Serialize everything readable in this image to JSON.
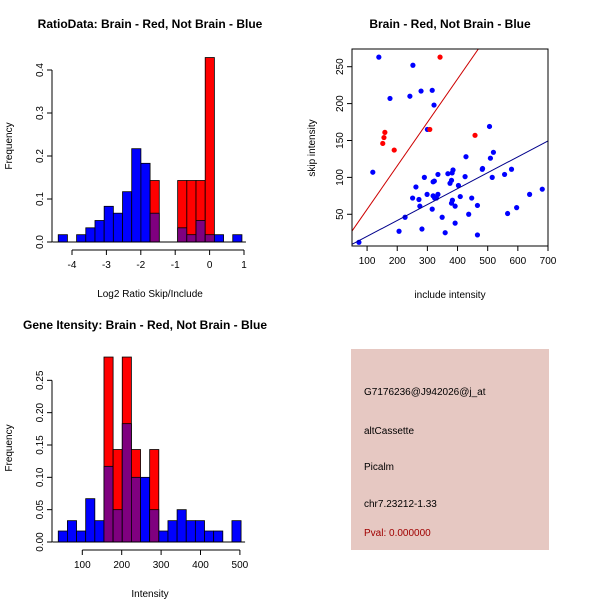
{
  "chart_data": [
    {
      "type": "bar",
      "subtype": "overlaid-histogram",
      "title": "RatioData: Brain - Red, Not Brain - Blue",
      "xlabel": "Log2 Ratio Skip/Include",
      "ylabel": "Frequency",
      "xlim": [
        -4.5,
        1.0
      ],
      "ylim": [
        0,
        0.43
      ],
      "xticks": [
        -4,
        -3,
        -2,
        -1,
        0,
        1
      ],
      "xtick_labels": [
        "-4",
        "-3",
        "-2",
        "-1",
        "0",
        "1"
      ],
      "yticks": [
        0,
        0.1,
        0.2,
        0.3,
        0.4
      ],
      "ytick_labels": [
        "0.0",
        "0.1",
        "0.2",
        "0.3",
        "0.4"
      ],
      "bin_start": -4.4,
      "bin_width": 0.267,
      "series": [
        {
          "name": "Not Brain",
          "color": "#0000ff",
          "values": [
            0.017,
            0,
            0.017,
            0.033,
            0.05,
            0.083,
            0.067,
            0.117,
            0.217,
            0.183,
            0.067,
            0,
            0,
            0.033,
            0.017,
            0.05,
            0.017,
            0.017,
            0,
            0.017
          ]
        },
        {
          "name": "Brain",
          "color": "#ff0000",
          "values": [
            0,
            0,
            0,
            0,
            0,
            0,
            0,
            0,
            0,
            0,
            0.143,
            0,
            0,
            0.143,
            0.143,
            0.143,
            0.429,
            0,
            0,
            0
          ]
        }
      ],
      "overlap_color": "#7f007f"
    },
    {
      "type": "scatter",
      "title": "Brain - Red, Not Brain - Blue",
      "xlabel": "include intensity",
      "ylabel": "skip intensity",
      "xlim": [
        50,
        700
      ],
      "ylim": [
        7,
        274
      ],
      "xticks": [
        100,
        200,
        300,
        400,
        500,
        600,
        700
      ],
      "yticks": [
        50,
        100,
        150,
        200,
        250
      ],
      "series": [
        {
          "name": "Not Brain",
          "color": "#0000ff",
          "points": [
            [
              139,
              263
            ],
            [
              252,
              252
            ],
            [
              176,
              207
            ],
            [
              242,
              210
            ],
            [
              279,
              217
            ],
            [
              316,
              218
            ],
            [
              322,
              198
            ],
            [
              300,
              165
            ],
            [
              506,
              169
            ],
            [
              519,
              134
            ],
            [
              509,
              126
            ],
            [
              428,
              128
            ],
            [
              119,
              107
            ],
            [
              73,
              12
            ],
            [
              206,
              27
            ],
            [
              226,
              46
            ],
            [
              282,
              30
            ],
            [
              251,
              72
            ],
            [
              262,
              87
            ],
            [
              272,
              70
            ],
            [
              275,
              61
            ],
            [
              290,
              100
            ],
            [
              299,
              77
            ],
            [
              316,
              57
            ],
            [
              319,
              94
            ],
            [
              323,
              95
            ],
            [
              319,
              75
            ],
            [
              324,
              72
            ],
            [
              330,
              72
            ],
            [
              335,
              77
            ],
            [
              335,
              104
            ],
            [
              349,
              46
            ],
            [
              359,
              25
            ],
            [
              368,
              105
            ],
            [
              375,
              92
            ],
            [
              380,
              96
            ],
            [
              382,
              106
            ],
            [
              385,
              110
            ],
            [
              383,
              69
            ],
            [
              380,
              65
            ],
            [
              392,
              61
            ],
            [
              403,
              89
            ],
            [
              409,
              74
            ],
            [
              392,
              38
            ],
            [
              425,
              101
            ],
            [
              437,
              50
            ],
            [
              447,
              72
            ],
            [
              466,
              62
            ],
            [
              466,
              22
            ],
            [
              482,
              111
            ],
            [
              483,
              112
            ],
            [
              515,
              100
            ],
            [
              556,
              104
            ],
            [
              566,
              51
            ],
            [
              579,
              111
            ],
            [
              596,
              59
            ],
            [
              639,
              77
            ],
            [
              681,
              84
            ]
          ],
          "fit_line": {
            "slope": 0.2156,
            "intercept": -1.5
          }
        },
        {
          "name": "Brain",
          "color": "#ff0000",
          "points": [
            [
              152,
              146
            ],
            [
              156,
              154
            ],
            [
              159,
              161
            ],
            [
              190,
              137
            ],
            [
              308,
              165
            ],
            [
              342,
              263
            ],
            [
              458,
              157
            ]
          ],
          "fit_line": {
            "slope": 0.589,
            "intercept": -2.2
          }
        }
      ],
      "line_colors": [
        "#00008b",
        "#cd0000"
      ]
    },
    {
      "type": "bar",
      "subtype": "overlaid-histogram",
      "title": "Gene Itensity: Brain - Red, Not Brain - Blue",
      "xlabel": "Intensity",
      "ylabel": "Frequency",
      "xlim": [
        30,
        520
      ],
      "ylim": [
        0,
        0.29
      ],
      "xticks": [
        100,
        200,
        300,
        400,
        500
      ],
      "xtick_labels": [
        "100",
        "200",
        "300",
        "400",
        "500"
      ],
      "yticks": [
        0,
        0.05,
        0.1,
        0.15,
        0.2,
        0.25
      ],
      "ytick_labels": [
        "0.00",
        "0.05",
        "0.10",
        "0.15",
        "0.20",
        "0.25"
      ],
      "bin_start": 39,
      "bin_width": 23.2,
      "series": [
        {
          "name": "Not Brain",
          "color": "#0000ff",
          "values": [
            0.017,
            0.033,
            0.017,
            0.067,
            0.033,
            0.117,
            0.05,
            0.183,
            0.1,
            0.1,
            0.05,
            0.017,
            0.033,
            0.05,
            0.033,
            0.033,
            0.017,
            0.017,
            0,
            0.033
          ]
        },
        {
          "name": "Brain",
          "color": "#ff0000",
          "values": [
            0,
            0,
            0,
            0,
            0,
            0.286,
            0.143,
            0.286,
            0.143,
            0,
            0.143,
            0,
            0,
            0,
            0,
            0,
            0,
            0,
            0,
            0
          ]
        }
      ],
      "overlap_color": "#7f007f"
    }
  ],
  "info_panel": {
    "background": "#e6c8c2",
    "probe_id": "G7176236@J942026@j_at",
    "event_type": "altCassette",
    "gene": "Picalm",
    "location": "chr7.23212-1.33",
    "pval": "Pval: 0.000000",
    "pval_color": "#a00000"
  }
}
